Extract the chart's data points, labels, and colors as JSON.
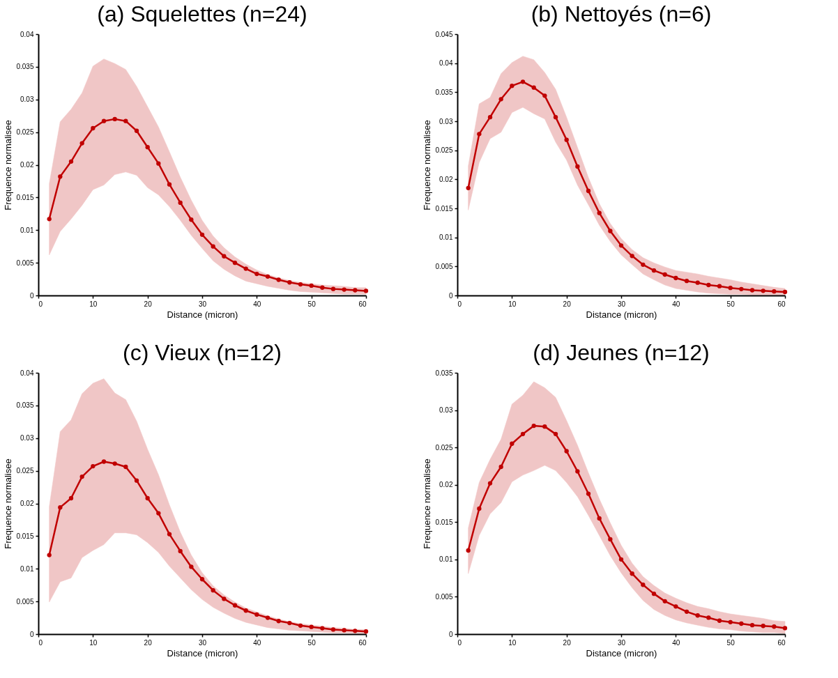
{
  "chart_data": [
    {
      "type": "line",
      "title": "(a) Squelettes (n=24)",
      "xlabel": "Distance (micron)",
      "ylabel": "Frequence normalisee",
      "marker": "circle",
      "xlim": [
        0,
        60
      ],
      "xticks": [
        0,
        10,
        20,
        30,
        40,
        50,
        60
      ],
      "ylim": [
        0,
        0.04
      ],
      "yticks": [
        0,
        0.005,
        0.01,
        0.015,
        0.02,
        0.025,
        0.03,
        0.035,
        0.04
      ],
      "x": [
        2,
        4,
        6,
        8,
        10,
        12,
        14,
        16,
        18,
        20,
        22,
        24,
        26,
        28,
        30,
        32,
        34,
        36,
        38,
        40,
        42,
        44,
        46,
        48,
        50,
        52,
        54,
        56,
        58,
        60
      ],
      "series": [
        {
          "color": "#c00000",
          "values": [
            0.0117,
            0.0182,
            0.0205,
            0.0233,
            0.0256,
            0.0267,
            0.027,
            0.0267,
            0.0252,
            0.0227,
            0.0202,
            0.017,
            0.0142,
            0.0116,
            0.0093,
            0.0075,
            0.006,
            0.005,
            0.0041,
            0.0033,
            0.0029,
            0.0024,
            0.002,
            0.0017,
            0.0015,
            0.0012,
            0.001,
            0.0009,
            0.0008,
            0.0007
          ],
          "lower": [
            0.0062,
            0.0098,
            0.0117,
            0.0138,
            0.0162,
            0.0169,
            0.0185,
            0.0189,
            0.0184,
            0.0165,
            0.0154,
            0.0136,
            0.0115,
            0.0092,
            0.0072,
            0.0053,
            0.004,
            0.003,
            0.0022,
            0.0018,
            0.0014,
            0.0011,
            0.0008,
            0.0006,
            0.0005,
            0.0004,
            0.0003,
            0.0002,
            0.0002,
            0.0002
          ],
          "upper": [
            0.0171,
            0.0266,
            0.0285,
            0.031,
            0.0351,
            0.0362,
            0.0355,
            0.0346,
            0.032,
            0.0289,
            0.0258,
            0.022,
            0.0181,
            0.0146,
            0.0115,
            0.0091,
            0.0073,
            0.0059,
            0.0048,
            0.0039,
            0.0032,
            0.0027,
            0.0023,
            0.002,
            0.0018,
            0.0016,
            0.0015,
            0.0014,
            0.0012,
            0.0012
          ]
        }
      ]
    },
    {
      "type": "line",
      "title": "(b) Nettoyés (n=6)",
      "xlabel": "Distance (micron)",
      "ylabel": "Frequence normalisee",
      "marker": "circle",
      "xlim": [
        0,
        60
      ],
      "xticks": [
        0,
        10,
        20,
        30,
        40,
        50,
        60
      ],
      "ylim": [
        0,
        0.045
      ],
      "yticks": [
        0,
        0.005,
        0.01,
        0.015,
        0.02,
        0.025,
        0.03,
        0.035,
        0.04,
        0.045
      ],
      "x": [
        2,
        4,
        6,
        8,
        10,
        12,
        14,
        16,
        18,
        20,
        22,
        24,
        26,
        28,
        30,
        32,
        34,
        36,
        38,
        40,
        42,
        44,
        46,
        48,
        50,
        52,
        54,
        56,
        58,
        60
      ],
      "series": [
        {
          "color": "#c00000",
          "values": [
            0.0185,
            0.0278,
            0.0307,
            0.0338,
            0.0361,
            0.0368,
            0.0358,
            0.0344,
            0.0307,
            0.0268,
            0.0222,
            0.018,
            0.0142,
            0.0111,
            0.0086,
            0.0068,
            0.0053,
            0.0043,
            0.0036,
            0.003,
            0.0025,
            0.0022,
            0.0018,
            0.0016,
            0.0013,
            0.0011,
            0.0009,
            0.0008,
            0.0007,
            0.0006
          ],
          "lower": [
            0.0147,
            0.0229,
            0.027,
            0.0281,
            0.0315,
            0.0324,
            0.0313,
            0.0304,
            0.0264,
            0.0233,
            0.019,
            0.0156,
            0.0121,
            0.0093,
            0.007,
            0.0053,
            0.0037,
            0.0027,
            0.0018,
            0.0012,
            0.0009,
            0.0006,
            0.0004,
            0.0003,
            0.0002,
            0.0002,
            0.0001,
            0.0001,
            0.0001,
            0.0001
          ],
          "upper": [
            0.0223,
            0.033,
            0.0341,
            0.0382,
            0.0401,
            0.0412,
            0.0406,
            0.0384,
            0.0355,
            0.0307,
            0.0255,
            0.0203,
            0.0158,
            0.0124,
            0.0098,
            0.0079,
            0.0065,
            0.0056,
            0.0049,
            0.0043,
            0.004,
            0.0037,
            0.0033,
            0.003,
            0.0027,
            0.0023,
            0.002,
            0.0017,
            0.0014,
            0.0012
          ]
        }
      ]
    },
    {
      "type": "line",
      "title": "(c) Vieux (n=12)",
      "xlabel": "Distance (micron)",
      "ylabel": "Frequence normalisee",
      "marker": "circle",
      "xlim": [
        0,
        60
      ],
      "xticks": [
        0,
        10,
        20,
        30,
        40,
        50,
        60
      ],
      "ylim": [
        0,
        0.04
      ],
      "yticks": [
        0,
        0.005,
        0.01,
        0.015,
        0.02,
        0.025,
        0.03,
        0.035,
        0.04
      ],
      "x": [
        2,
        4,
        6,
        8,
        10,
        12,
        14,
        16,
        18,
        20,
        22,
        24,
        26,
        28,
        30,
        32,
        34,
        36,
        38,
        40,
        42,
        44,
        46,
        48,
        50,
        52,
        54,
        56,
        58,
        60
      ],
      "series": [
        {
          "color": "#c00000",
          "values": [
            0.0121,
            0.0194,
            0.0208,
            0.0241,
            0.0257,
            0.0264,
            0.0261,
            0.0256,
            0.0235,
            0.0208,
            0.0185,
            0.0153,
            0.0127,
            0.0103,
            0.0084,
            0.0067,
            0.0054,
            0.0044,
            0.0036,
            0.003,
            0.0025,
            0.002,
            0.0017,
            0.0013,
            0.0011,
            0.0009,
            0.0007,
            0.0006,
            0.0005,
            0.0004
          ],
          "lower": [
            0.0049,
            0.008,
            0.0086,
            0.0117,
            0.0128,
            0.0137,
            0.0155,
            0.0155,
            0.0152,
            0.014,
            0.0125,
            0.0104,
            0.0086,
            0.0068,
            0.0053,
            0.0041,
            0.0032,
            0.0024,
            0.0018,
            0.0014,
            0.001,
            0.0008,
            0.0006,
            0.0005,
            0.0004,
            0.0003,
            0.0002,
            0.0002,
            0.0001,
            0.0001
          ],
          "upper": [
            0.0195,
            0.031,
            0.0328,
            0.0368,
            0.0384,
            0.0391,
            0.0369,
            0.0359,
            0.0326,
            0.0283,
            0.0244,
            0.0198,
            0.0156,
            0.0121,
            0.0094,
            0.0074,
            0.006,
            0.0049,
            0.004,
            0.0034,
            0.0028,
            0.0023,
            0.0019,
            0.0016,
            0.0014,
            0.0012,
            0.001,
            0.0009,
            0.0007,
            0.0007
          ]
        }
      ]
    },
    {
      "type": "line",
      "title": "(d) Jeunes (n=12)",
      "xlabel": "Distance (micron)",
      "ylabel": "Frequence normalisee",
      "marker": "circle",
      "xlim": [
        0,
        60
      ],
      "xticks": [
        0,
        10,
        20,
        30,
        40,
        50,
        60
      ],
      "ylim": [
        0,
        0.035
      ],
      "yticks": [
        0,
        0.005,
        0.01,
        0.015,
        0.02,
        0.025,
        0.03,
        0.035
      ],
      "x": [
        2,
        4,
        6,
        8,
        10,
        12,
        14,
        16,
        18,
        20,
        22,
        24,
        26,
        28,
        30,
        32,
        34,
        36,
        38,
        40,
        42,
        44,
        46,
        48,
        50,
        52,
        54,
        56,
        58,
        60
      ],
      "series": [
        {
          "color": "#c00000",
          "values": [
            0.0112,
            0.0168,
            0.0202,
            0.0224,
            0.0255,
            0.0268,
            0.0279,
            0.0278,
            0.0268,
            0.0245,
            0.0218,
            0.0188,
            0.0155,
            0.0127,
            0.01,
            0.0081,
            0.0066,
            0.0054,
            0.0044,
            0.0037,
            0.003,
            0.0025,
            0.0022,
            0.0018,
            0.0016,
            0.0014,
            0.0012,
            0.0011,
            0.001,
            0.0008
          ],
          "lower": [
            0.0081,
            0.0132,
            0.0161,
            0.0176,
            0.0204,
            0.0213,
            0.0219,
            0.0226,
            0.0219,
            0.0203,
            0.0184,
            0.0159,
            0.0132,
            0.0105,
            0.0082,
            0.0062,
            0.0045,
            0.0033,
            0.0025,
            0.0019,
            0.0015,
            0.0012,
            0.0009,
            0.0007,
            0.0006,
            0.0004,
            0.0003,
            0.0002,
            0.0002,
            0.0001
          ],
          "upper": [
            0.0142,
            0.0203,
            0.0234,
            0.0261,
            0.0308,
            0.032,
            0.0338,
            0.033,
            0.0317,
            0.0286,
            0.0253,
            0.0216,
            0.0181,
            0.0149,
            0.0119,
            0.0095,
            0.0077,
            0.0065,
            0.0055,
            0.0048,
            0.0042,
            0.0037,
            0.0034,
            0.003,
            0.0027,
            0.0025,
            0.0023,
            0.0021,
            0.0018,
            0.0017
          ]
        }
      ]
    }
  ]
}
